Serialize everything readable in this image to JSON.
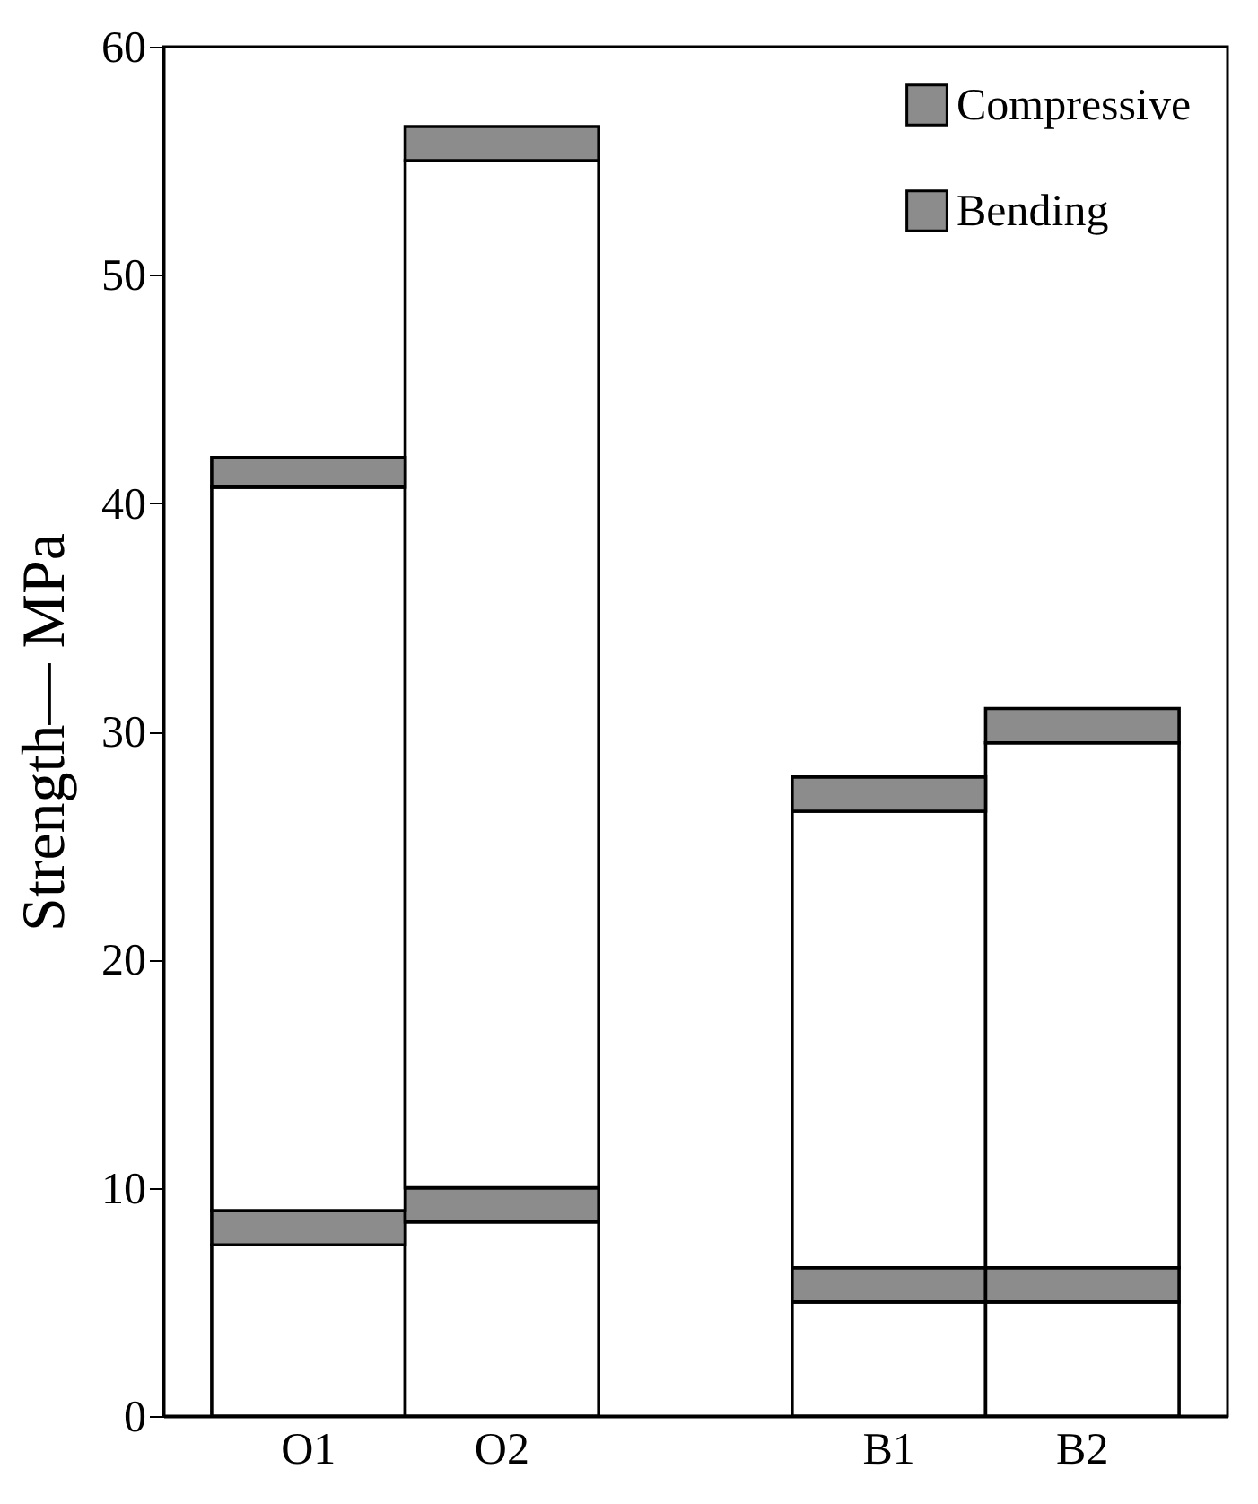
{
  "chart_data": {
    "type": "bar",
    "stacked": true,
    "ylabel": "Strength— MPa",
    "categories": [
      "O1",
      "O2",
      null,
      "B1",
      "B2"
    ],
    "series": [
      {
        "color": "#ffffff",
        "values": [
          7.5,
          8.5,
          null,
          5,
          5
        ]
      },
      {
        "name": "Bending",
        "color": "#8c8c8c",
        "values": [
          1.5,
          1.5,
          null,
          1.5,
          1.5
        ]
      },
      {
        "color": "#ffffff",
        "values": [
          31.7,
          45,
          null,
          20,
          23
        ]
      },
      {
        "name": "Compressive",
        "color": "#8c8c8c",
        "values": [
          1.3,
          1.5,
          null,
          1.5,
          1.5
        ]
      }
    ],
    "ylim": [
      0,
      60
    ],
    "yticks": [
      0,
      10,
      20,
      30,
      40,
      50,
      60
    ],
    "legend": "top right"
  }
}
